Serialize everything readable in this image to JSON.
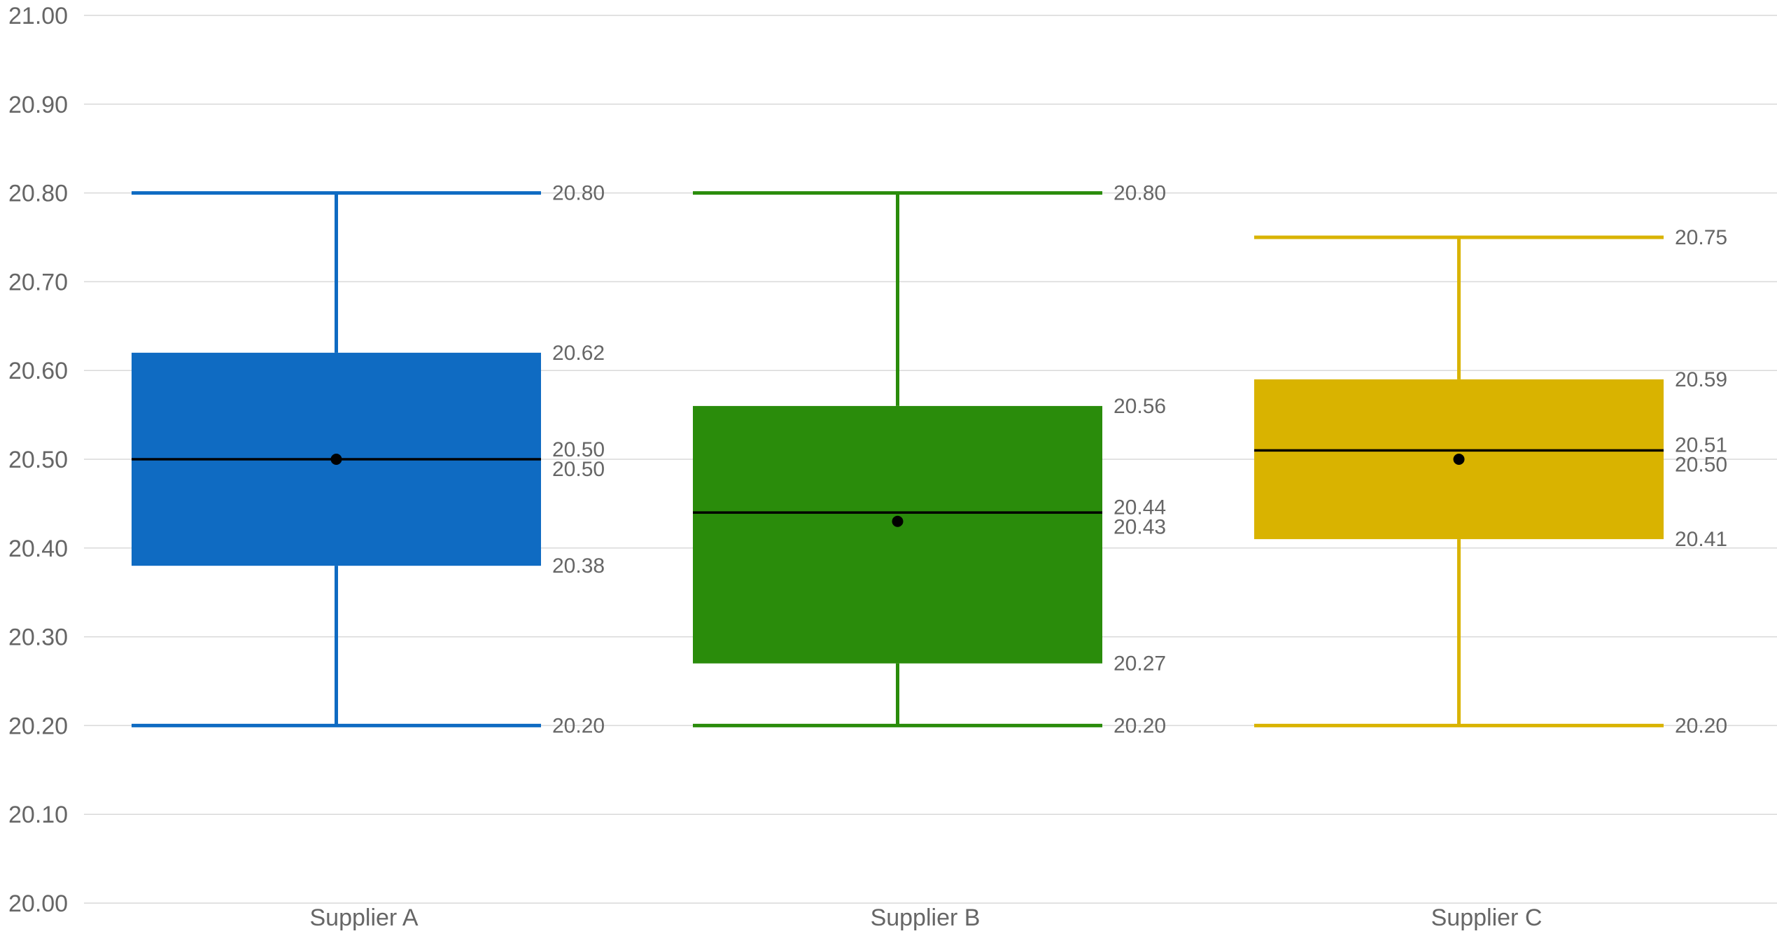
{
  "chart_data": {
    "type": "boxplot",
    "ylim": [
      20.0,
      21.0
    ],
    "y_ticks": [
      "20.00",
      "20.10",
      "20.20",
      "20.30",
      "20.40",
      "20.50",
      "20.60",
      "20.70",
      "20.80",
      "20.90",
      "21.00"
    ],
    "grid": true,
    "categories": [
      "Supplier A",
      "Supplier B",
      "Supplier C"
    ],
    "boxes": [
      {
        "category": "Supplier A",
        "color": "#0F6BC2",
        "min": 20.2,
        "q1": 20.38,
        "median": 20.5,
        "mean": 20.5,
        "q3": 20.62,
        "max": 20.8,
        "labels": {
          "min": "20.20",
          "q1": "20.38",
          "median": "20.50",
          "mean": "20.50",
          "q3": "20.62",
          "max": "20.80"
        }
      },
      {
        "category": "Supplier B",
        "color": "#2A8C0B",
        "min": 20.2,
        "q1": 20.27,
        "median": 20.44,
        "mean": 20.43,
        "q3": 20.56,
        "max": 20.8,
        "labels": {
          "min": "20.20",
          "q1": "20.27",
          "median": "20.44",
          "mean": "20.43",
          "q3": "20.56",
          "max": "20.80"
        }
      },
      {
        "category": "Supplier C",
        "color": "#D9B300",
        "min": 20.2,
        "q1": 20.41,
        "median": 20.51,
        "mean": 20.5,
        "q3": 20.59,
        "max": 20.75,
        "labels": {
          "min": "20.20",
          "q1": "20.41",
          "median": "20.51",
          "mean": "20.50",
          "q3": "20.59",
          "max": "20.75"
        }
      }
    ],
    "median_color": "#000000",
    "mean_marker_color": "#000000"
  }
}
